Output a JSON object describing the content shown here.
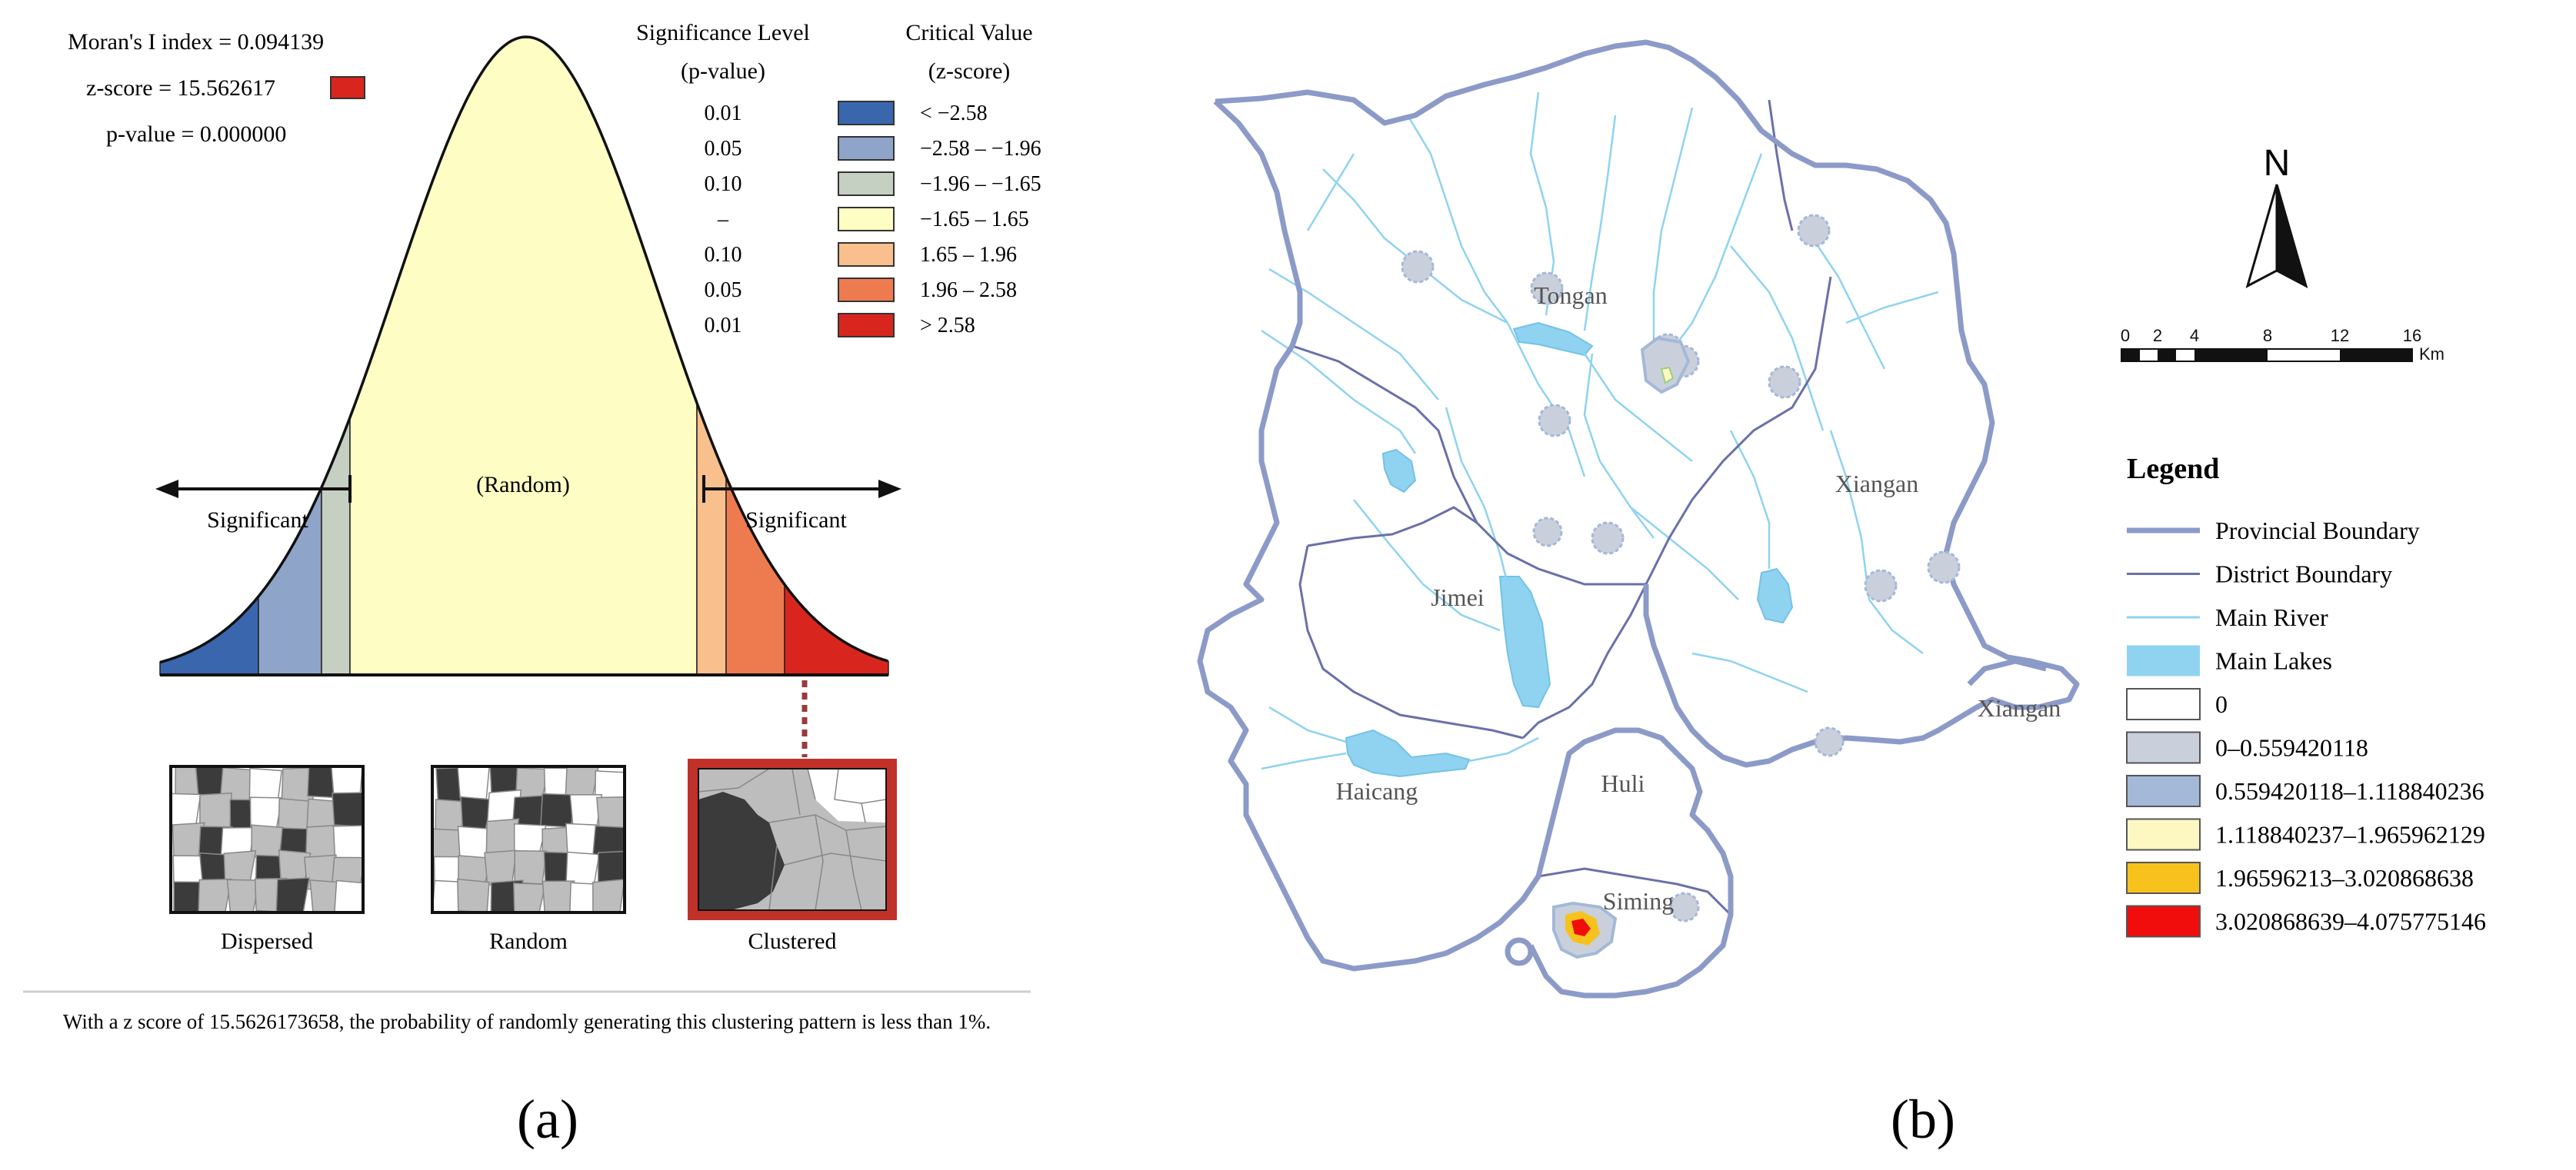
{
  "panel_a": {
    "label": "(a)",
    "morans_i": "Moran's I index = 0.094139",
    "z_score": "z-score = 15.562617",
    "p_value": "p-value = 0.000000",
    "sig_header_1": "Significance Level",
    "sig_header_2": "(p-value)",
    "crit_header_1": "Critical Value",
    "crit_header_2": "(z-score)",
    "legend_rows": [
      {
        "p": "0.01",
        "z": "< −2.58",
        "color": "#3a66ad"
      },
      {
        "p": "0.05",
        "z": "−2.58 – −1.96",
        "color": "#8ea4c8"
      },
      {
        "p": "0.10",
        "z": "−1.96 – −1.65",
        "color": "#c6d0c2"
      },
      {
        "p": "–",
        "z": "−1.65 – 1.65",
        "color": "#fdfdc4"
      },
      {
        "p": "0.10",
        "z": "1.65 – 1.96",
        "color": "#f9bf8c"
      },
      {
        "p": "0.05",
        "z": "1.96 – 2.58",
        "color": "#ee7b50"
      },
      {
        "p": "0.01",
        "z": "> 2.58",
        "color": "#d8261f"
      }
    ],
    "zscore_marker_color": "#d8261f",
    "random_label": "(Random)",
    "significant_left": "Significant",
    "significant_right": "Significant",
    "pattern_labels": [
      "Dispersed",
      "Random",
      "Clustered"
    ],
    "caption": "With a z score of 15.5626173658, the probability of randomly generating this clustering pattern is less than 1%."
  },
  "panel_b": {
    "label": "(b)",
    "north": "N",
    "scale_ticks": [
      "0",
      "2",
      "4",
      "8",
      "12",
      "16"
    ],
    "scale_unit": "Km",
    "district_labels": [
      "Tongan",
      "Xiangan",
      "Jimei",
      "Haicang",
      "Huli",
      "Siming",
      "Xiangan"
    ],
    "legend_title": "Legend",
    "legend_items": [
      {
        "label": "Provincial Boundary",
        "color": "#8c9ac8"
      },
      {
        "label": "District Boundary",
        "color": "#6a70a8"
      },
      {
        "label": "Main River",
        "color": "#8fd3f0"
      },
      {
        "label": "Main Lakes",
        "color": "#8fd3f0"
      },
      {
        "label": "0",
        "color": "#ffffff"
      },
      {
        "label": "0–0.559420118",
        "color": "#c9d0dc"
      },
      {
        "label": "0.559420118–1.118840236",
        "color": "#a4b8d8"
      },
      {
        "label": "1.118840237–1.965962129",
        "color": "#fdf7c2"
      },
      {
        "label": "1.96596213–3.020868638",
        "color": "#f8c21c"
      },
      {
        "label": "3.020868639–4.075775146",
        "color": "#f20d0d"
      }
    ]
  }
}
